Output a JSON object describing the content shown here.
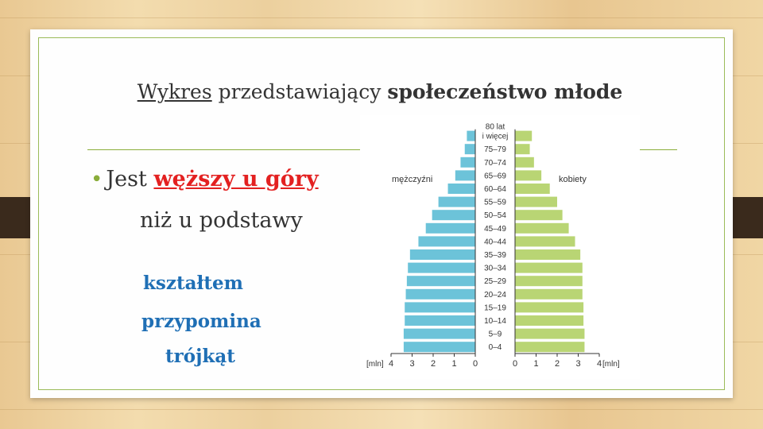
{
  "slide": {
    "title_prefix": "Wykres",
    "title_middle": " przedstawiający ",
    "title_bold": "społeczeństwo młode",
    "bullet_text": "Jest ",
    "bullet_highlight": "węższy u góry",
    "bullet_line2": "niż u podstawy",
    "shape_line1": "kształtem",
    "shape_line2": "przypomina",
    "shape_line3": "trójkąt"
  },
  "chart_data": {
    "type": "bar",
    "orientation": "horizontal-pyramid",
    "categories": [
      "0–4",
      "5–9",
      "10–14",
      "15–19",
      "20–24",
      "25–29",
      "30–34",
      "35–39",
      "40–44",
      "45–49",
      "50–54",
      "55–59",
      "60–64",
      "65–69",
      "70–74",
      "75–79",
      "80 lat i więcej"
    ],
    "top_label_line1": "80 lat",
    "top_label_line2": "i więcej",
    "series": [
      {
        "name": "mężczyźni",
        "values": [
          3.4,
          3.4,
          3.35,
          3.35,
          3.3,
          3.25,
          3.2,
          3.1,
          2.7,
          2.35,
          2.05,
          1.75,
          1.3,
          0.95,
          0.7,
          0.5,
          0.4
        ],
        "color": "#6cc3d9"
      },
      {
        "name": "kobiety",
        "values": [
          3.3,
          3.3,
          3.25,
          3.25,
          3.2,
          3.2,
          3.2,
          3.1,
          2.85,
          2.55,
          2.25,
          2.0,
          1.65,
          1.25,
          0.9,
          0.7,
          0.8
        ],
        "color": "#b9d574"
      }
    ],
    "xlabel": "[mln]",
    "x_ticks_left": [
      "4",
      "3",
      "2",
      "1",
      "0"
    ],
    "x_ticks_right": [
      "0",
      "1",
      "2",
      "3",
      "4"
    ],
    "xlim": [
      0,
      4
    ]
  }
}
